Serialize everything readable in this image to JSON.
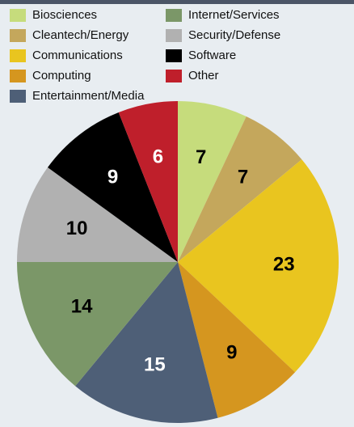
{
  "chart_data": {
    "type": "pie",
    "categories": [
      "Biosciences",
      "Cleantech/Energy",
      "Communications",
      "Computing",
      "Entertainment/Media",
      "Internet/Services",
      "Security/Defense",
      "Software",
      "Other"
    ],
    "values": [
      7,
      7,
      23,
      9,
      15,
      14,
      10,
      9,
      6
    ],
    "colors": [
      "#c6dc7c",
      "#c4a75c",
      "#e9c51f",
      "#d5961f",
      "#4e5f77",
      "#7b9768",
      "#b1b1b1",
      "#000000",
      "#bf1f2b"
    ]
  }
}
